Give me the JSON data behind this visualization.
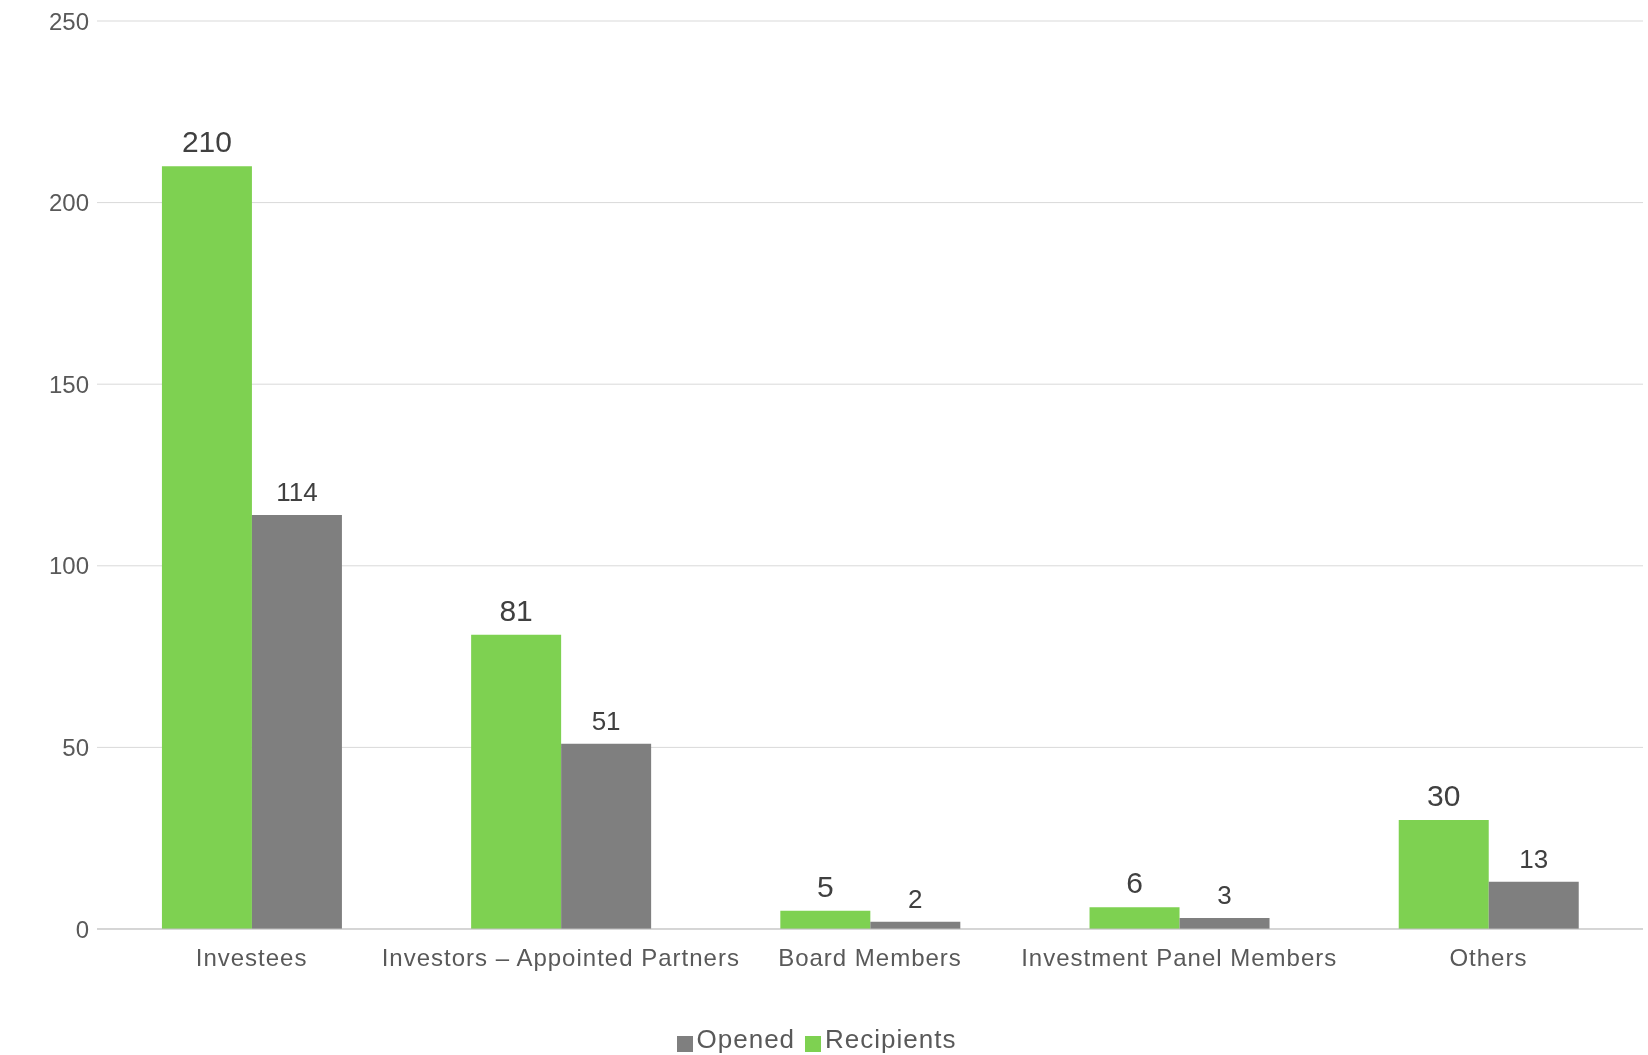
{
  "chart_data": {
    "type": "bar",
    "categories": [
      "Investees",
      "Investors – Appointed Partners",
      "Board Members",
      "Investment Panel Members",
      "Others"
    ],
    "series": [
      {
        "name": "Recipients",
        "color": "#7ed151",
        "values": [
          210,
          81,
          5,
          6,
          30
        ]
      },
      {
        "name": "Opened",
        "color": "#7f7f7f",
        "values": [
          114,
          51,
          2,
          3,
          13
        ]
      }
    ],
    "ylim": [
      0,
      250
    ],
    "yticks": [
      0,
      50,
      100,
      150,
      200,
      250
    ],
    "grid": "y",
    "legend": "bottom",
    "data_labels": true
  }
}
